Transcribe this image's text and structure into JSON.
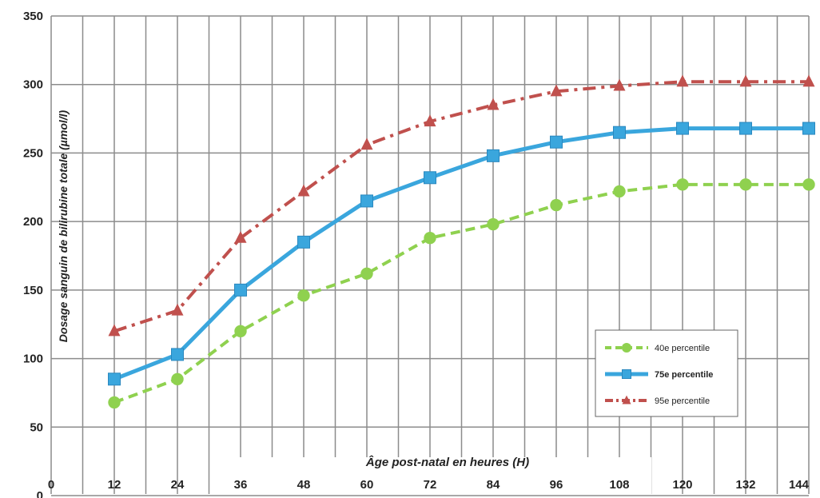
{
  "chart_data": {
    "type": "line",
    "title": "",
    "xlabel": "Âge post-natal en heures (H)",
    "ylabel": "Dosage sanguin de bilirubine totale (µmol/l)",
    "x_ticks": [
      "0",
      "12",
      "24",
      "36",
      "48",
      "60",
      "72",
      "84",
      "96",
      "108",
      "120",
      "132",
      "144"
    ],
    "y_ticks": [
      "0",
      "50",
      "100",
      "150",
      "200",
      "250",
      "300",
      "350"
    ],
    "xlim": [
      0,
      144
    ],
    "ylim": [
      0,
      350
    ],
    "grid": true,
    "legend_position": "bottom-right",
    "x": [
      12,
      24,
      36,
      48,
      60,
      72,
      84,
      96,
      108,
      120,
      132,
      144
    ],
    "series": [
      {
        "name": "40e percentile",
        "color": "#8fd14f",
        "marker": "circle",
        "line_style": "dashed",
        "values": [
          68,
          85,
          120,
          146,
          162,
          188,
          198,
          212,
          222,
          227,
          227,
          227
        ]
      },
      {
        "name": "75e percentile",
        "color": "#3aa6dd",
        "marker": "square",
        "line_style": "solid",
        "values": [
          85,
          103,
          150,
          185,
          215,
          232,
          248,
          258,
          265,
          268,
          268,
          268
        ]
      },
      {
        "name": "95e percentile",
        "color": "#c0504d",
        "marker": "triangle",
        "line_style": "dash-dot",
        "values": [
          120,
          135,
          188,
          222,
          256,
          273,
          285,
          295,
          299,
          302,
          302,
          302
        ]
      }
    ]
  }
}
